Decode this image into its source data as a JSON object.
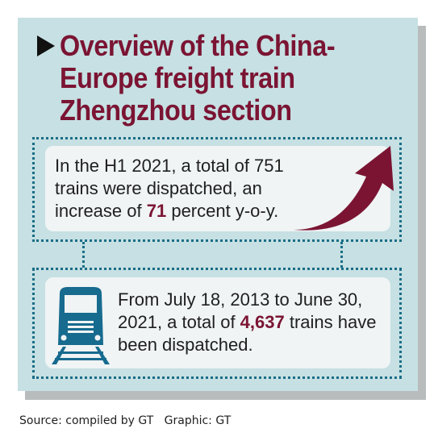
{
  "title": "Overview of the China-Europe freight train Zhengzhou section",
  "box1": {
    "text_before": "In the H1 2021, a total of 751 trains were dispatched, an increase of ",
    "highlight": "71",
    "text_after": " percent y-o-y."
  },
  "box2": {
    "text_before": "From July 18, 2013 to June 30, 2021, a total of ",
    "highlight": "4,637",
    "text_after": " trains have been dispatched."
  },
  "footer": {
    "source": "Source: compiled by GT   Graphic: GT"
  },
  "icons": {
    "title_marker": "play-triangle-icon",
    "growth": "upward-arrow-icon",
    "train": "train-icon"
  },
  "colors": {
    "panel_bg": "#c6e0e3",
    "accent_maroon": "#7b1433",
    "dotted_teal": "#1a6d86",
    "train_blue": "#176b8f",
    "card_bg": "#f0f4f4"
  }
}
